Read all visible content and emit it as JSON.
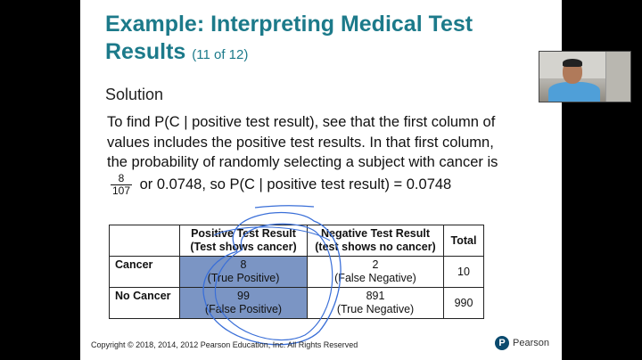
{
  "slide": {
    "title": "Example: Interpreting Medical Test Results",
    "title_sub": "(11 of 12)",
    "solution_heading": "Solution",
    "body": {
      "text1": "To find ",
      "p_open": "P(C | positive test result)",
      "text2": ", see that the first column of values includes the positive test results. In that first column, the probability of randomly selecting a subject with cancer is ",
      "frac_num": "8",
      "frac_den": "107",
      "text3": " or 0.0748, so ",
      "p_close": "P(C | positive test result)",
      "text4": " = 0.0748"
    },
    "table": {
      "headers": [
        "",
        "Positive Test Result (Test shows cancer)",
        "Negative Test Result (test shows no cancer)",
        "Total"
      ],
      "rows": [
        {
          "label": "Cancer",
          "pos_value": "8",
          "pos_note": "(True Positive)",
          "neg_value": "2",
          "neg_note": "(False Negative)",
          "total": "10"
        },
        {
          "label": "No Cancer",
          "pos_value": "99",
          "pos_note": "(False Positive)",
          "neg_value": "891",
          "neg_note": "(True Negative)",
          "total": "990"
        }
      ]
    },
    "footer": "Copyright © 2018, 2014, 2012 Pearson Education, Inc. All Rights Reserved",
    "brand": "Pearson",
    "brand_logo": "P"
  },
  "colors": {
    "title": "#1c7a8a",
    "highlight": "#7b95c4",
    "annotation": "#3a6fd8"
  }
}
